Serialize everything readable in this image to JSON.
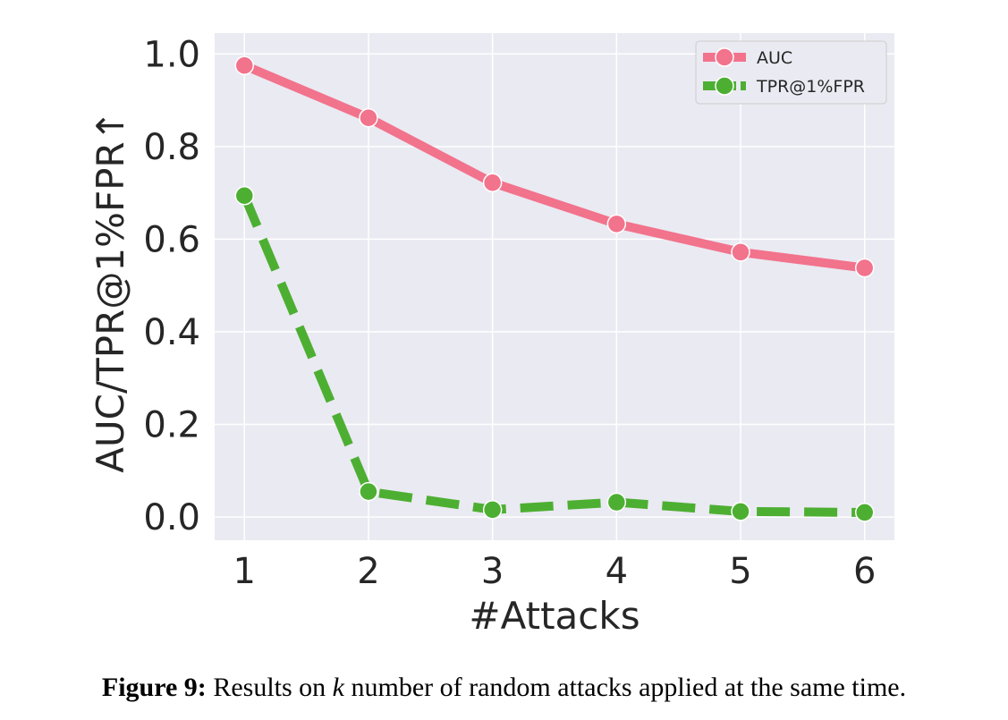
{
  "chart_data": {
    "type": "line",
    "xlabel": "#Attacks",
    "ylabel": "AUC/TPR@1%FPR↑",
    "x": [
      1,
      2,
      3,
      4,
      5,
      6
    ],
    "xticks": [
      "1",
      "2",
      "3",
      "4",
      "5",
      "6"
    ],
    "xlim": [
      0.76,
      6.24
    ],
    "yticks": [
      "0.0",
      "0.2",
      "0.4",
      "0.6",
      "0.8",
      "1.0"
    ],
    "ylim": [
      -0.05,
      1.045
    ],
    "grid": true,
    "legend_position": "top-right",
    "series": [
      {
        "name": "AUC",
        "style": "solid",
        "color": "#f2738c",
        "values": [
          0.975,
          0.862,
          0.722,
          0.633,
          0.572,
          0.538
        ]
      },
      {
        "name": "TPR@1%FPR",
        "style": "dashed",
        "color": "#4daf32",
        "values": [
          0.694,
          0.055,
          0.016,
          0.032,
          0.012,
          0.01
        ]
      }
    ]
  },
  "caption": {
    "label": "Figure 9:",
    "text_before": "Results on",
    "variable": "k",
    "text_after": "number of random attacks applied at the same time."
  }
}
